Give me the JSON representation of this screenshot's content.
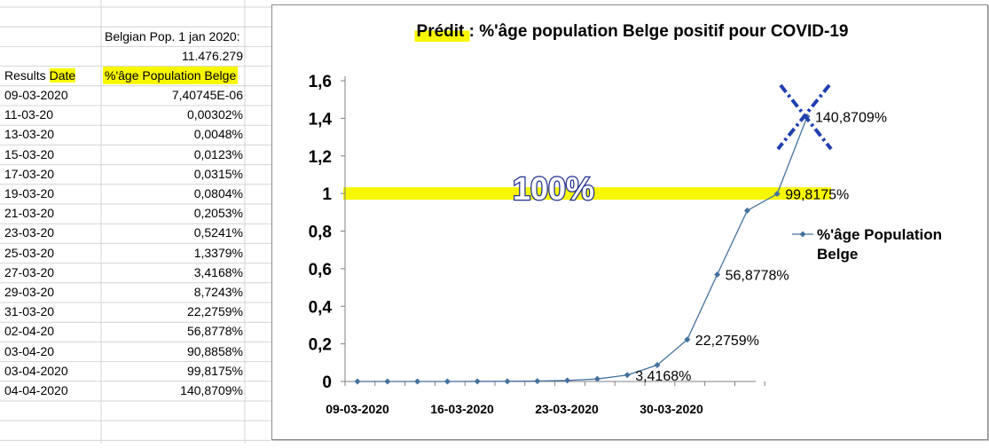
{
  "sheet": {
    "pop_label": "Belgian Pop. 1 jan 2020:",
    "pop_value": "11.476.279",
    "header_results": "Results",
    "header_date": "Date",
    "header_pct": "%'âge Population Belge",
    "rows": [
      {
        "date": "09-03-2020",
        "value": "7,40745E-06"
      },
      {
        "date": "11-03-20",
        "value": "0,00302%"
      },
      {
        "date": "13-03-20",
        "value": "0,0048%"
      },
      {
        "date": "15-03-20",
        "value": "0,0123%"
      },
      {
        "date": "17-03-20",
        "value": "0,0315%"
      },
      {
        "date": "19-03-20",
        "value": "0,0804%"
      },
      {
        "date": "21-03-20",
        "value": "0,2053%"
      },
      {
        "date": "23-03-20",
        "value": "0,5241%"
      },
      {
        "date": "25-03-20",
        "value": "1,3379%"
      },
      {
        "date": "27-03-20",
        "value": "3,4168%"
      },
      {
        "date": "29-03-20",
        "value": "8,7243%"
      },
      {
        "date": "31-03-20",
        "value": "22,2759%"
      },
      {
        "date": "02-04-20",
        "value": "56,8778%"
      },
      {
        "date": "03-04-20",
        "value": "90,8858%"
      },
      {
        "date": "03-04-2020",
        "value": "99,8175%"
      },
      {
        "date": "04-04-2020",
        "value": "140,8709%"
      }
    ]
  },
  "chart_data": {
    "type": "line",
    "title_prefix": "Prédit",
    "title_rest": " : %'âge population Belge positif pour COVID-19",
    "ylim": [
      0,
      1.6
    ],
    "yticks": [
      "0",
      "0,2",
      "0,4",
      "0,6",
      "0,8",
      "1",
      "1,2",
      "1,4",
      "1,6"
    ],
    "xtick_labels": [
      "09-03-2020",
      "16-03-2020",
      "23-03-2020",
      "30-03-2020"
    ],
    "grid": false,
    "legend_position": "right",
    "series": [
      {
        "name": "%'âge Population Belge",
        "color": "#44729e",
        "x": [
          "09-03-2020",
          "11-03-2020",
          "13-03-2020",
          "15-03-2020",
          "17-03-2020",
          "19-03-2020",
          "21-03-2020",
          "23-03-2020",
          "25-03-2020",
          "27-03-2020",
          "29-03-2020",
          "31-03-2020",
          "02-04-2020",
          "03-04-2020",
          "03-04-2020",
          "04-04-2020"
        ],
        "values": [
          7.41e-08,
          3.02e-05,
          4.8e-05,
          0.000123,
          0.000315,
          0.000804,
          0.002053,
          0.005241,
          0.013379,
          0.034168,
          0.087243,
          0.222759,
          0.568778,
          0.908858,
          0.998175,
          1.408709
        ]
      }
    ],
    "data_labels": [
      {
        "index": 9,
        "text": "3,4168%"
      },
      {
        "index": 11,
        "text": "22,2759%"
      },
      {
        "index": 12,
        "text": "56,8778%"
      },
      {
        "index": 14,
        "text": "99,8175%"
      },
      {
        "index": 15,
        "text": "140,8709%"
      }
    ],
    "annotation_text": "100%",
    "highlight_value": 1,
    "highlight_color": "#f7f700",
    "cross_color": "#1f3fb0"
  }
}
